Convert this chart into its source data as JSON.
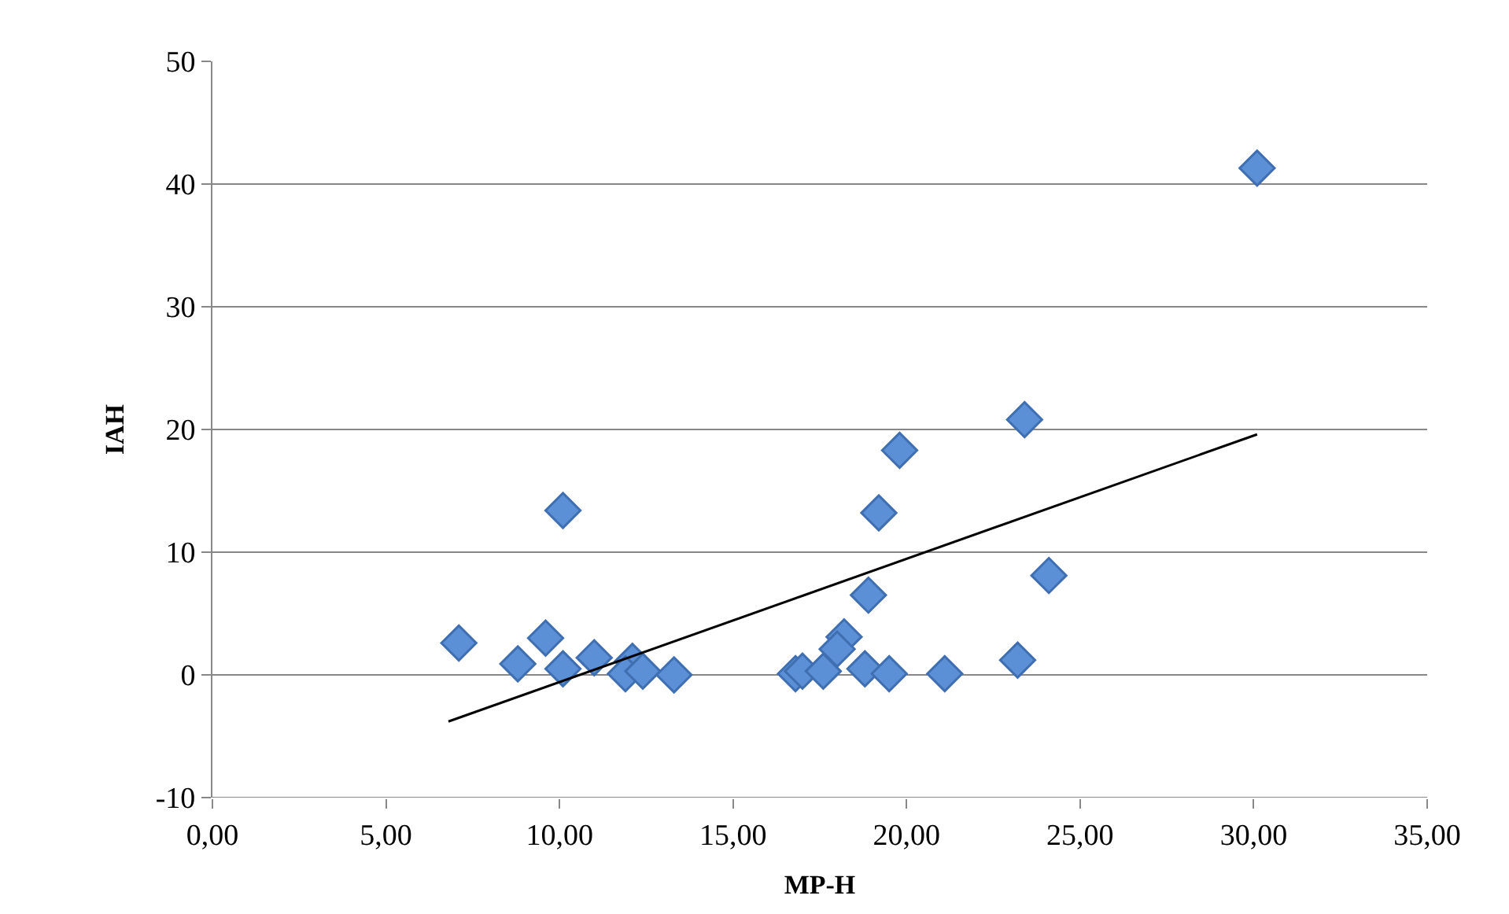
{
  "chart_data": {
    "type": "scatter",
    "xlabel": "MP-H",
    "ylabel": "IAH",
    "xlim": [
      0,
      35
    ],
    "xticks": [
      {
        "value": 0,
        "label": "0,00"
      },
      {
        "value": 5,
        "label": "5,00"
      },
      {
        "value": 10,
        "label": "10,00"
      },
      {
        "value": 15,
        "label": "15,00"
      },
      {
        "value": 20,
        "label": "20,00"
      },
      {
        "value": 25,
        "label": "25,00"
      },
      {
        "value": 30,
        "label": "30,00"
      },
      {
        "value": 35,
        "label": "35,00"
      }
    ],
    "ylim": [
      -10,
      50
    ],
    "yticks": [
      -10,
      0,
      10,
      20,
      30,
      40,
      50
    ],
    "grid": "y",
    "marker": "diamond",
    "series": [
      {
        "color": "#5b8fd6",
        "x": [
          7.1,
          8.8,
          9.6,
          10.1,
          10.1,
          11.0,
          12.1,
          11.9,
          12.4,
          13.3,
          23.4,
          19.8,
          19.2,
          18.9,
          18.2,
          18.0,
          16.8,
          17.0,
          17.6,
          18.8,
          19.5,
          21.1,
          23.2,
          24.1,
          30.1
        ],
        "values": [
          2.6,
          0.9,
          3.0,
          0.5,
          13.4,
          1.4,
          1.1,
          0.1,
          0.3,
          0.0,
          20.8,
          18.3,
          13.2,
          6.5,
          3.1,
          2.1,
          0.1,
          0.3,
          0.3,
          0.5,
          0.1,
          0.1,
          1.2,
          8.1,
          41.3
        ]
      },
      {
        "type": "line",
        "color": "#000000",
        "marker": "none",
        "x": [
          6.8,
          30.1
        ],
        "values": [
          -3.8,
          19.6
        ]
      }
    ]
  }
}
